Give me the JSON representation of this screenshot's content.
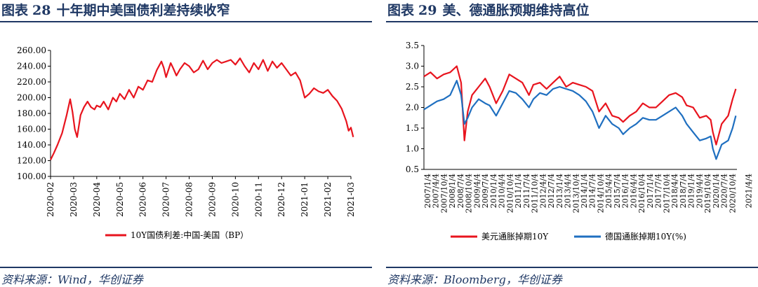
{
  "figures": [
    {
      "figure_label": "图表",
      "figure_number": "28",
      "figure_title": "十年期中美国债利差持续收窄",
      "source": "资料来源：Wind，华创证券"
    },
    {
      "figure_label": "图表",
      "figure_number": "29",
      "figure_title": "美、德通胀预期维持高位",
      "source": "资料来源：Bloomberg，华创证券"
    }
  ],
  "chart_data": [
    {
      "type": "line",
      "title": "",
      "xlabel": "",
      "ylabel": "",
      "ylim": [
        100,
        260
      ],
      "y_ticks": [
        "100.00",
        "120.00",
        "140.00",
        "160.00",
        "180.00",
        "200.00",
        "220.00",
        "240.00",
        "260.00"
      ],
      "x_ticks": [
        "2020-02",
        "2020-03",
        "2020-04",
        "2020-05",
        "2020-06",
        "2020-07",
        "2020-08",
        "2020-09",
        "2020-10",
        "2020-11",
        "2020-12",
        "2021-01",
        "2021-02",
        "2021-03"
      ],
      "legend_position": "bottom",
      "series": [
        {
          "name": "10Y国债利差:中国-美国（BP）",
          "color": "#e8141e",
          "x": [
            0,
            0.15,
            0.3,
            0.5,
            0.7,
            0.85,
            0.95,
            1.05,
            1.15,
            1.3,
            1.45,
            1.6,
            1.75,
            1.9,
            2.0,
            2.15,
            2.3,
            2.5,
            2.7,
            2.85,
            3.0,
            3.2,
            3.4,
            3.6,
            3.8,
            4.0,
            4.2,
            4.4,
            4.6,
            4.8,
            4.9,
            5.0,
            5.1,
            5.2,
            5.3,
            5.45,
            5.6,
            5.8,
            6.0,
            6.2,
            6.4,
            6.6,
            6.8,
            7.0,
            7.2,
            7.4,
            7.6,
            7.8,
            8.0,
            8.2,
            8.4,
            8.6,
            8.8,
            9.0,
            9.2,
            9.4,
            9.6,
            9.8,
            10.0,
            10.2,
            10.4,
            10.6,
            10.8,
            11.0,
            11.2,
            11.4,
            11.6,
            11.8,
            12.0,
            12.2,
            12.4,
            12.6,
            12.8,
            12.9,
            13.0,
            13.1
          ],
          "values": [
            121,
            130,
            140,
            155,
            178,
            198,
            182,
            160,
            150,
            178,
            188,
            195,
            188,
            185,
            190,
            188,
            195,
            185,
            200,
            195,
            205,
            198,
            210,
            200,
            214,
            210,
            222,
            220,
            235,
            246,
            238,
            226,
            235,
            244,
            238,
            228,
            236,
            244,
            240,
            232,
            236,
            247,
            236,
            244,
            248,
            244,
            246,
            248,
            242,
            250,
            240,
            232,
            244,
            236,
            248,
            234,
            246,
            238,
            244,
            236,
            228,
            232,
            222,
            200,
            205,
            212,
            208,
            206,
            210,
            202,
            196,
            186,
            170,
            158,
            162,
            150
          ]
        }
      ]
    },
    {
      "type": "line",
      "title": "",
      "xlabel": "",
      "ylabel": "",
      "ylim": [
        0.5,
        3.5
      ],
      "y_ticks": [
        "0.5",
        "1.0",
        "1.5",
        "2.0",
        "2.5",
        "3.0",
        "3.5"
      ],
      "x_ticks": [
        "2007/1/4",
        "2007/10/4",
        "2008/7/4",
        "2009/4/4",
        "2010/1/4",
        "2010/10/4",
        "2011/7/4",
        "2012/4/4",
        "2013/1/4",
        "2013/10/4",
        "2014/7/4",
        "2015/4/4",
        "2016/1/4",
        "2016/10/4",
        "2017/7/4",
        "2018/4/4",
        "2019/1/4",
        "2019/10/4",
        "2020/7/4"
      ],
      "x_ticks_row2": [
        "2007/4/4",
        "2008/1/4",
        "2008/10/4",
        "2009/7/4",
        "2010/4/4",
        "2011/1/4",
        "2011/10/4",
        "2012/7/4",
        "2013/4/4",
        "2014/1/4",
        "2014/10/4",
        "2015/7/4",
        "2016/4/4",
        "2017/1/4",
        "2017/10/4",
        "2018/7/4",
        "2019/4/4",
        "2020/1/4",
        "2020/10/4",
        "2021/4/4"
      ],
      "legend_position": "bottom",
      "series": [
        {
          "name": "美元通胀掉期10Y",
          "color": "#e8141e",
          "x": [
            2007.0,
            2007.3,
            2007.6,
            2007.9,
            2008.2,
            2008.5,
            2008.7,
            2008.85,
            2009.0,
            2009.2,
            2009.5,
            2009.8,
            2010.0,
            2010.3,
            2010.6,
            2010.9,
            2011.2,
            2011.5,
            2011.8,
            2012.0,
            2012.3,
            2012.6,
            2012.9,
            2013.2,
            2013.5,
            2013.8,
            2014.1,
            2014.4,
            2014.7,
            2015.0,
            2015.3,
            2015.6,
            2015.9,
            2016.1,
            2016.4,
            2016.7,
            2017.0,
            2017.3,
            2017.6,
            2017.9,
            2018.2,
            2018.5,
            2018.8,
            2019.0,
            2019.3,
            2019.6,
            2019.9,
            2020.1,
            2020.2,
            2020.35,
            2020.6,
            2020.9,
            2021.1,
            2021.25
          ],
          "values": [
            2.75,
            2.85,
            2.7,
            2.8,
            2.85,
            3.0,
            2.6,
            1.2,
            1.9,
            2.3,
            2.5,
            2.7,
            2.5,
            2.1,
            2.4,
            2.8,
            2.7,
            2.6,
            2.3,
            2.55,
            2.6,
            2.45,
            2.6,
            2.75,
            2.5,
            2.6,
            2.55,
            2.5,
            2.4,
            1.9,
            2.1,
            1.8,
            1.75,
            1.65,
            1.8,
            1.9,
            2.1,
            2.0,
            2.0,
            2.15,
            2.3,
            2.35,
            2.25,
            2.05,
            2.0,
            1.75,
            1.8,
            1.7,
            1.4,
            1.1,
            1.6,
            1.8,
            2.2,
            2.45
          ]
        },
        {
          "name": "德国通胀掉期10Y(%)",
          "color": "#1f6fc0",
          "x": [
            2007.0,
            2007.3,
            2007.6,
            2007.9,
            2008.2,
            2008.5,
            2008.7,
            2008.85,
            2009.0,
            2009.2,
            2009.5,
            2009.8,
            2010.0,
            2010.3,
            2010.6,
            2010.9,
            2011.2,
            2011.5,
            2011.8,
            2012.0,
            2012.3,
            2012.6,
            2012.9,
            2013.2,
            2013.5,
            2013.8,
            2014.1,
            2014.4,
            2014.7,
            2015.0,
            2015.3,
            2015.6,
            2015.9,
            2016.1,
            2016.4,
            2016.7,
            2017.0,
            2017.3,
            2017.6,
            2017.9,
            2018.2,
            2018.5,
            2018.8,
            2019.0,
            2019.3,
            2019.6,
            2019.9,
            2020.1,
            2020.2,
            2020.35,
            2020.6,
            2020.9,
            2021.1,
            2021.25
          ],
          "values": [
            1.95,
            2.05,
            2.15,
            2.2,
            2.3,
            2.65,
            2.3,
            1.6,
            1.75,
            2.0,
            2.2,
            2.1,
            2.05,
            1.8,
            2.1,
            2.4,
            2.35,
            2.2,
            2.0,
            2.2,
            2.35,
            2.3,
            2.45,
            2.5,
            2.45,
            2.4,
            2.3,
            2.15,
            1.9,
            1.5,
            1.8,
            1.6,
            1.5,
            1.35,
            1.5,
            1.6,
            1.75,
            1.7,
            1.7,
            1.8,
            1.9,
            2.0,
            1.8,
            1.6,
            1.4,
            1.2,
            1.25,
            1.3,
            1.0,
            0.75,
            1.1,
            1.2,
            1.5,
            1.8
          ]
        }
      ]
    }
  ]
}
